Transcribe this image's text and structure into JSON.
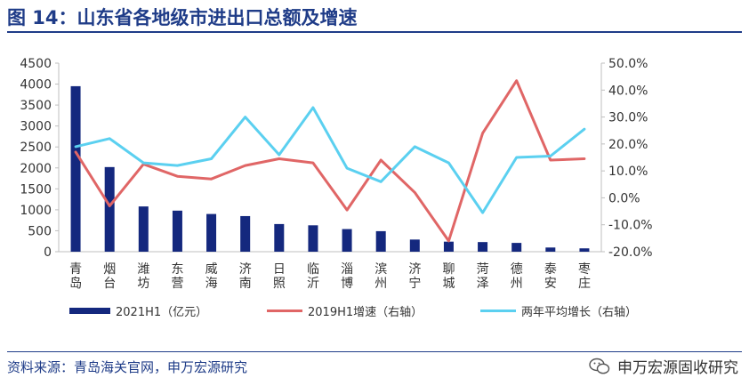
{
  "figure_title": "图 14：山东省各地级市进出口总额及增速",
  "source": "资料来源：青岛海关官网，申万宏源研究",
  "watermark": {
    "icon": "wechat-icon",
    "text": "申万宏源固收研究"
  },
  "colors": {
    "bar": "#14287e",
    "growth2019": "#e06666",
    "growth2yr": "#5bd0f0",
    "title": "#1f3c88"
  },
  "chart_data": {
    "type": "bar+line",
    "categories": [
      "青岛",
      "烟台",
      "潍坊",
      "东营",
      "威海",
      "济南",
      "日照",
      "临沂",
      "淄博",
      "滨州",
      "济宁",
      "聊城",
      "菏泽",
      "德州",
      "泰安",
      "枣庄"
    ],
    "left_axis": {
      "min": 0,
      "max": 4500,
      "ticks": [
        "0",
        "500",
        "1000",
        "1500",
        "2000",
        "2500",
        "3000",
        "3500",
        "4000",
        "4500"
      ]
    },
    "right_axis": {
      "min": -20,
      "max": 50,
      "ticks": [
        "-20.0%",
        "-10.0%",
        "0.0%",
        "10.0%",
        "20.0%",
        "30.0%",
        "40.0%",
        "50.0%"
      ]
    },
    "series": [
      {
        "name": "2021H1（亿元）",
        "type": "bar",
        "axis": "left",
        "values": [
          3950,
          2020,
          1080,
          980,
          900,
          850,
          660,
          630,
          540,
          490,
          290,
          240,
          230,
          210,
          100,
          80
        ]
      },
      {
        "name": "2019H1增速（右轴）",
        "type": "line",
        "axis": "right",
        "values": [
          17,
          -3,
          12.5,
          8,
          7,
          12,
          14.5,
          13,
          -4.5,
          14,
          2,
          -16,
          24,
          43.5,
          14,
          14.5
        ]
      },
      {
        "name": "两年平均增长（右轴）",
        "type": "line",
        "axis": "right",
        "values": [
          19,
          22,
          13,
          12,
          14.5,
          30,
          16,
          33.5,
          11,
          6,
          19,
          13,
          -5.5,
          15,
          15.5,
          25.5
        ]
      }
    ],
    "legend_position": "bottom",
    "grid": false
  }
}
